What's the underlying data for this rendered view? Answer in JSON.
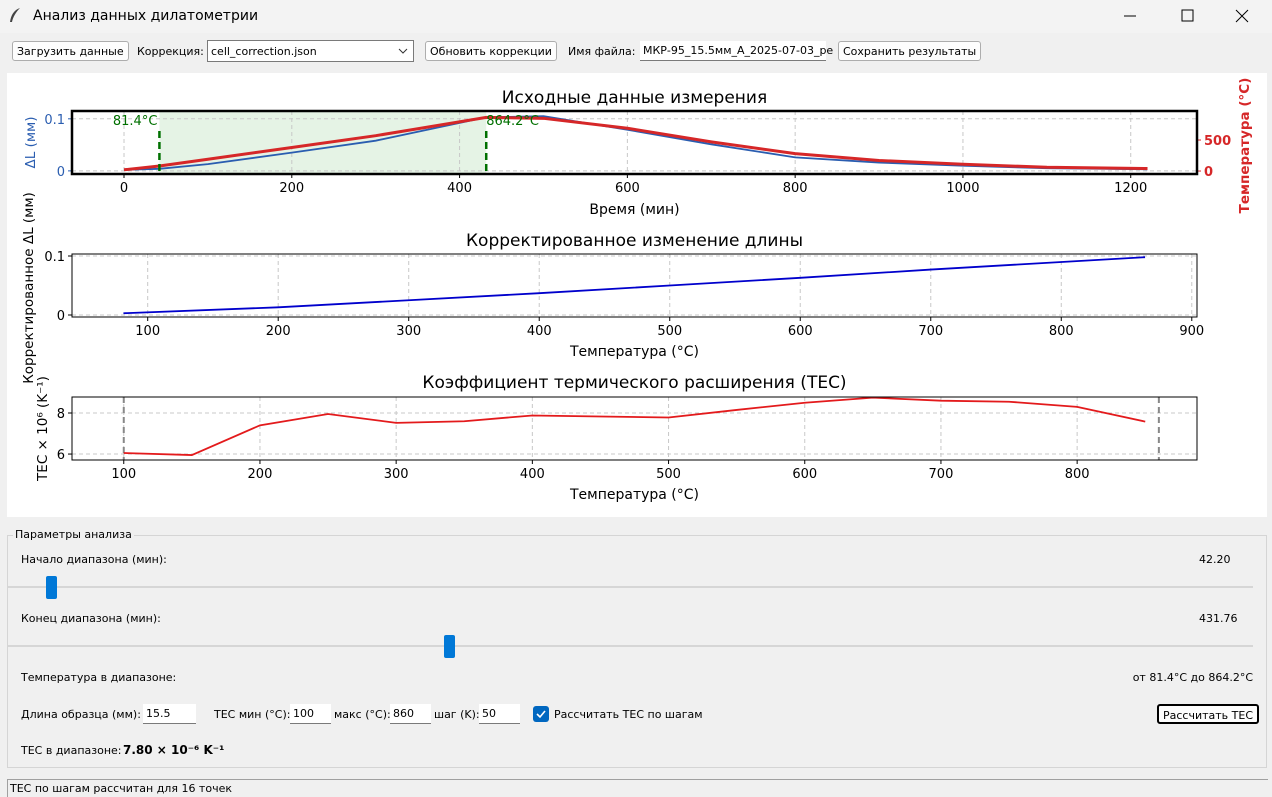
{
  "window": {
    "title": "Анализ данных дилатометрии"
  },
  "toolbar": {
    "load_button": "Загрузить данные",
    "correction_label": "Коррекция:",
    "correction_value": "cell_correction.json",
    "refresh_button": "Обновить коррекции",
    "file_label": "Имя файла:",
    "file_value": "МКР-95_15.5мм_А_2025-07-03_ре",
    "save_button": "Сохранить результаты"
  },
  "chart_data": [
    {
      "type": "line",
      "title": "Исходные данные измерения",
      "xlabel": "Время (мин)",
      "ylabel": "ΔL (мм)",
      "y2label": "Температура (°C)",
      "x": [
        0,
        42.2,
        100,
        200,
        300,
        431.76,
        500,
        600,
        700,
        800,
        900,
        1000,
        1100,
        1220
      ],
      "series": [
        {
          "color": "#2a5db0",
          "values": [
            0.002,
            0.004,
            0.013,
            0.035,
            0.058,
            0.103,
            0.105,
            0.079,
            0.051,
            0.026,
            0.016,
            0.01,
            0.005,
            0.003
          ]
        },
        {
          "color": "#d62728",
          "axis": "y2",
          "values": [
            20,
            81.4,
            190,
            380,
            570,
            864.2,
            850,
            690,
            470,
            280,
            170,
            110,
            60,
            40
          ]
        }
      ],
      "xlim": [
        -62,
        1279
      ],
      "xticks": [
        0,
        200,
        400,
        600,
        800,
        1000,
        1200
      ],
      "ylim": [
        -0.006,
        0.115
      ],
      "yticks": [
        0.0,
        0.1
      ],
      "y2lim": [
        -48,
        968
      ],
      "y2ticks": [
        0,
        500
      ],
      "span": [
        42.2,
        431.76
      ],
      "span_labels": [
        "81.4°C",
        "864.2°C"
      ],
      "span_color": "#2ca02c",
      "grid": true
    },
    {
      "type": "line",
      "title": "Корректированное изменение длины",
      "xlabel": "Температура (°C)",
      "ylabel": "Корректированное ΔL (мм)",
      "x": [
        81.4,
        200,
        300,
        400,
        500,
        600,
        700,
        864.2
      ],
      "series": [
        {
          "color": "#0000cc",
          "values": [
            0.003,
            0.013,
            0.025,
            0.037,
            0.05,
            0.063,
            0.077,
            0.098
          ]
        }
      ],
      "xlim": [
        42,
        904
      ],
      "xticks": [
        100,
        200,
        300,
        400,
        500,
        600,
        700,
        800,
        900
      ],
      "ylim": [
        -0.0034,
        0.1034
      ],
      "yticks": [
        0.0,
        0.1
      ],
      "grid": true
    },
    {
      "type": "line",
      "title": "Коэффициент термического расширения (TEC)",
      "xlabel": "Температура (°C)",
      "ylabel": "TEC × 10⁶ (K⁻¹)",
      "x": [
        100,
        150,
        200,
        250,
        300,
        350,
        400,
        450,
        500,
        550,
        600,
        650,
        700,
        750,
        800,
        850
      ],
      "series": [
        {
          "color": "#e31a1c",
          "values": [
            6.05,
            5.95,
            7.4,
            7.95,
            7.52,
            7.6,
            7.88,
            7.83,
            7.78,
            8.15,
            8.5,
            8.75,
            8.6,
            8.55,
            8.3,
            7.58
          ]
        }
      ],
      "xlim": [
        62,
        888
      ],
      "xticks": [
        100,
        200,
        300,
        400,
        500,
        600,
        700,
        800
      ],
      "ylim": [
        5.71,
        8.78
      ],
      "yticks": [
        6,
        8
      ],
      "vlines": [
        100,
        860
      ],
      "vline_color": "#888888",
      "grid": true
    }
  ],
  "params": {
    "group_title": "Параметры анализа",
    "start_label": "Начало диапазона (мин):",
    "start_value": "42.20",
    "end_label": "Конец диапазона (мин):",
    "end_value": "431.76",
    "temp_label": "Температура в диапазоне:",
    "temp_value": "от 81.4°C до 864.2°C",
    "length_label": "Длина образца (мм):",
    "length_value": "15.5",
    "tec_min_label": "TEC мин (°C):",
    "tec_min_value": "100",
    "tec_max_label": "макс (°C):",
    "tec_max_value": "860",
    "step_label": "шаг (K):",
    "step_value": "50",
    "step_checkbox": "Рассчитать TEC по шагам",
    "calc_button": "Рассчитать TEC",
    "tec_label": "TEC в диапазоне:",
    "tec_value": "7.80 × 10⁻⁶ K⁻¹"
  },
  "status": "TEC по шагам рассчитан для 16 точек"
}
